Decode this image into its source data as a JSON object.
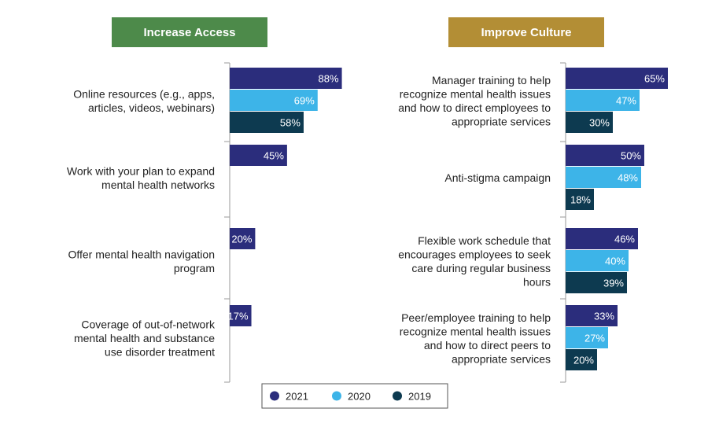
{
  "colors": {
    "2021": "#2b2d7c",
    "2020": "#3db4e8",
    "2019": "#0d3a50",
    "increase_access_header": "#4d8a4a",
    "improve_culture_header": "#b38e35",
    "axis": "#999999"
  },
  "chart_data": [
    {
      "type": "bar",
      "orientation": "horizontal",
      "title": "Increase Access",
      "xlim": [
        0,
        100
      ],
      "series_names": [
        "2021",
        "2020",
        "2019"
      ],
      "categories": [
        {
          "label_lines": [
            "Online resources (e.g., apps,",
            "articles, videos, webinars)"
          ],
          "values": [
            88,
            69,
            58
          ]
        },
        {
          "label_lines": [
            "Work with your plan to expand",
            "mental health networks"
          ],
          "values": [
            45
          ]
        },
        {
          "label_lines": [
            "Offer mental health navigation",
            "program"
          ],
          "values": [
            20
          ]
        },
        {
          "label_lines": [
            "Coverage of out-of-network",
            "mental health and substance",
            "use disorder treatment"
          ],
          "values": [
            17
          ]
        }
      ]
    },
    {
      "type": "bar",
      "orientation": "horizontal",
      "title": "Improve Culture",
      "xlim": [
        0,
        100
      ],
      "series_names": [
        "2021",
        "2020",
        "2019"
      ],
      "categories": [
        {
          "label_lines": [
            "Manager training to help",
            "recognize mental health issues",
            "and how to direct employees to",
            "appropriate services"
          ],
          "values": [
            65,
            47,
            30
          ]
        },
        {
          "label_lines": [
            "Anti-stigma campaign"
          ],
          "values": [
            50,
            48,
            18
          ]
        },
        {
          "label_lines": [
            "Flexible work schedule that",
            "encourages employees to seek",
            "care during regular business",
            "hours"
          ],
          "values": [
            46,
            40,
            39
          ]
        },
        {
          "label_lines": [
            "Peer/employee training to help",
            "recognize mental health issues",
            "and how to direct peers to",
            "appropriate services"
          ],
          "values": [
            33,
            27,
            20
          ]
        }
      ]
    }
  ],
  "legend": {
    "items": [
      {
        "label": "2021",
        "color": "#2b2d7c"
      },
      {
        "label": "2020",
        "color": "#3db4e8"
      },
      {
        "label": "2019",
        "color": "#0d3a50"
      }
    ]
  }
}
